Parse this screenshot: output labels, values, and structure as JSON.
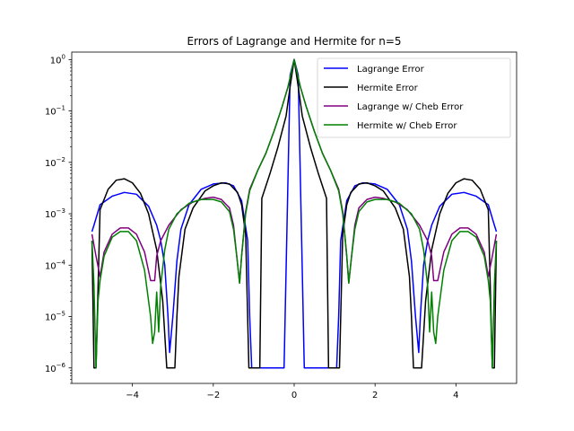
{
  "chart_data": {
    "type": "line",
    "title": "Errors of Lagrange and Hermite for n=5",
    "xlabel": "",
    "ylabel": "",
    "xlim": [
      -5.5,
      5.5
    ],
    "ylim": [
      5e-07,
      1.4
    ],
    "yscale": "log",
    "xticks": [
      -4,
      -2,
      0,
      2,
      4
    ],
    "xtick_labels": [
      "−4",
      "−2",
      "0",
      "2",
      "4"
    ],
    "yticks": [
      1e-06,
      1e-05,
      0.0001,
      0.001,
      0.01,
      0.1,
      1
    ],
    "ytick_labels": [
      {
        "base": "10",
        "exp": "−6"
      },
      {
        "base": "10",
        "exp": "−5"
      },
      {
        "base": "10",
        "exp": "−4"
      },
      {
        "base": "10",
        "exp": "−3"
      },
      {
        "base": "10",
        "exp": "−2"
      },
      {
        "base": "10",
        "exp": "−1"
      },
      {
        "base": "10",
        "exp": "0"
      }
    ],
    "grid": false,
    "legend_position": "top-right",
    "series": [
      {
        "name": "Lagrange Error",
        "color": "#0000ff",
        "x": [
          -5,
          -4.95,
          -4.8,
          -4.5,
          -4.2,
          -3.9,
          -3.6,
          -3.4,
          -3.3,
          -3.2,
          -3.12,
          -3.08,
          -3.0,
          -2.9,
          -2.8,
          -2.6,
          -2.3,
          -2.0,
          -1.7,
          -1.5,
          -1.3,
          -1.15,
          -1.1,
          -1.05,
          -1.0,
          -0.9,
          -0.8,
          -0.6,
          -0.4,
          -0.25,
          -0.1,
          0,
          0.1,
          0.25,
          0.4,
          0.6,
          0.8,
          0.9,
          1.0,
          1.05,
          1.1,
          1.15,
          1.3,
          1.5,
          1.7,
          2.0,
          2.3,
          2.6,
          2.8,
          2.9,
          3.0,
          3.08,
          3.12,
          3.2,
          3.3,
          3.4,
          3.6,
          3.9,
          4.2,
          4.5,
          4.8,
          4.95,
          5
        ],
        "y": [
          0.00045,
          0.0006,
          0.0015,
          0.0022,
          0.0026,
          0.0024,
          0.0014,
          0.0006,
          0.0003,
          0.0001,
          1e-05,
          2e-06,
          1e-05,
          0.00012,
          0.0005,
          0.0015,
          0.003,
          0.0038,
          0.004,
          0.0035,
          0.0018,
          0.0003,
          1e-05,
          1e-06,
          1e-06,
          1e-06,
          1e-06,
          1e-06,
          1e-06,
          1e-06,
          0.5,
          1.0,
          0.5,
          1e-06,
          1e-06,
          1e-06,
          1e-06,
          1e-06,
          1e-06,
          1e-06,
          1e-05,
          0.0003,
          0.0018,
          0.0035,
          0.004,
          0.0038,
          0.003,
          0.0015,
          0.0005,
          0.00012,
          1e-05,
          2e-06,
          1e-05,
          0.0001,
          0.0003,
          0.0006,
          0.0014,
          0.0024,
          0.0026,
          0.0022,
          0.0015,
          0.0006,
          0.00045
        ]
      },
      {
        "name": "Hermite Error",
        "color": "#000000",
        "x": [
          -5,
          -4.95,
          -4.9,
          -4.8,
          -4.6,
          -4.4,
          -4.2,
          -4.0,
          -3.8,
          -3.6,
          -3.4,
          -3.25,
          -3.15,
          -3.1,
          -3.05,
          -3.0,
          -2.95,
          -2.9,
          -2.85,
          -2.7,
          -2.5,
          -2.2,
          -2.0,
          -1.8,
          -1.6,
          -1.4,
          -1.3,
          -1.2,
          -1.12,
          -1.1,
          -1.05,
          -1.0,
          -0.95,
          -0.9,
          -0.85,
          -0.8,
          -0.6,
          -0.4,
          -0.2,
          -0.1,
          0,
          0.1,
          0.2,
          0.4,
          0.6,
          0.8,
          0.85,
          0.9,
          0.95,
          1.0,
          1.05,
          1.1,
          1.12,
          1.2,
          1.3,
          1.4,
          1.6,
          1.8,
          2.0,
          2.2,
          2.5,
          2.7,
          2.85,
          2.9,
          2.95,
          3.0,
          3.05,
          3.1,
          3.15,
          3.25,
          3.4,
          3.6,
          3.8,
          4.0,
          4.2,
          4.4,
          4.6,
          4.8,
          4.9,
          4.95,
          5
        ],
        "y": [
          0.0003,
          1e-06,
          1e-06,
          0.0012,
          0.003,
          0.0045,
          0.0048,
          0.004,
          0.0025,
          0.001,
          0.0002,
          2e-05,
          1e-06,
          1e-06,
          1e-06,
          1e-06,
          1e-06,
          1e-05,
          6e-05,
          0.0005,
          0.0013,
          0.0028,
          0.0035,
          0.004,
          0.0038,
          0.0026,
          0.0015,
          0.0004,
          1e-06,
          1e-06,
          1e-06,
          1e-06,
          1e-06,
          1e-06,
          1e-06,
          0.002,
          0.006,
          0.02,
          0.08,
          0.3,
          1.0,
          0.3,
          0.08,
          0.02,
          0.006,
          0.002,
          1e-06,
          1e-06,
          1e-06,
          1e-06,
          1e-06,
          1e-06,
          1e-06,
          0.0004,
          0.0015,
          0.0026,
          0.0038,
          0.004,
          0.0035,
          0.0028,
          0.0013,
          0.0005,
          6e-05,
          1e-05,
          1e-06,
          1e-06,
          1e-06,
          1e-06,
          1e-06,
          2e-05,
          0.0002,
          0.001,
          0.0025,
          0.004,
          0.0048,
          0.0045,
          0.003,
          0.0012,
          1e-06,
          1e-06,
          0.0003
        ]
      },
      {
        "name": "Lagrange w/ Cheb Error",
        "color": "#800080",
        "x": [
          -5,
          -4.9,
          -4.8,
          -4.7,
          -4.5,
          -4.3,
          -4.1,
          -3.9,
          -3.7,
          -3.55,
          -3.45,
          -3.4,
          -3.3,
          -3.1,
          -2.8,
          -2.5,
          -2.2,
          -2.0,
          -1.8,
          -1.6,
          -1.5,
          -1.42,
          -1.35,
          -1.3,
          -1.2,
          -1.1,
          -0.9,
          -0.7,
          -0.5,
          -0.3,
          -0.15,
          0,
          0.15,
          0.3,
          0.5,
          0.7,
          0.9,
          1.1,
          1.2,
          1.3,
          1.35,
          1.42,
          1.5,
          1.6,
          1.8,
          2.0,
          2.2,
          2.5,
          2.8,
          3.1,
          3.3,
          3.4,
          3.45,
          3.55,
          3.7,
          3.9,
          4.1,
          4.3,
          4.5,
          4.7,
          4.8,
          4.9,
          5
        ],
        "y": [
          0.0004,
          0.00015,
          6e-05,
          0.00018,
          0.0004,
          0.00053,
          0.00053,
          0.0004,
          0.00018,
          5e-05,
          5e-05,
          0.00015,
          0.0003,
          0.0006,
          0.0012,
          0.0017,
          0.002,
          0.0021,
          0.0019,
          0.0013,
          0.0006,
          0.00015,
          4.5e-05,
          0.00015,
          0.0011,
          0.003,
          0.007,
          0.015,
          0.04,
          0.12,
          0.3,
          1.0,
          0.3,
          0.12,
          0.04,
          0.015,
          0.007,
          0.003,
          0.0011,
          0.00015,
          4.5e-05,
          0.00015,
          0.0006,
          0.0013,
          0.0019,
          0.0021,
          0.002,
          0.0017,
          0.0012,
          0.0006,
          0.0003,
          0.00015,
          5e-05,
          5e-05,
          0.00018,
          0.0004,
          0.00053,
          0.00053,
          0.0004,
          0.00018,
          6e-05,
          0.00015,
          0.0004
        ]
      },
      {
        "name": "Hermite w/ Cheb Error",
        "color": "#008000",
        "x": [
          -5,
          -4.95,
          -4.9,
          -4.85,
          -4.8,
          -4.7,
          -4.5,
          -4.3,
          -4.1,
          -3.9,
          -3.7,
          -3.55,
          -3.5,
          -3.45,
          -3.4,
          -3.35,
          -3.3,
          -3.2,
          -3.1,
          -2.9,
          -2.6,
          -2.3,
          -2.0,
          -1.8,
          -1.6,
          -1.5,
          -1.42,
          -1.35,
          -1.3,
          -1.2,
          -1.1,
          -0.9,
          -0.7,
          -0.5,
          -0.3,
          -0.15,
          0,
          0.15,
          0.3,
          0.5,
          0.7,
          0.9,
          1.1,
          1.2,
          1.3,
          1.35,
          1.42,
          1.5,
          1.6,
          1.8,
          2.0,
          2.3,
          2.6,
          2.9,
          3.1,
          3.2,
          3.3,
          3.35,
          3.4,
          3.45,
          3.5,
          3.55,
          3.7,
          3.9,
          4.1,
          4.3,
          4.5,
          4.7,
          4.8,
          4.85,
          4.9,
          4.95,
          5
        ],
        "y": [
          0.0003,
          4e-05,
          1e-06,
          2e-05,
          5e-05,
          0.00015,
          0.00035,
          0.00045,
          0.00045,
          0.0003,
          8e-05,
          1e-05,
          3e-06,
          5e-06,
          3e-05,
          5e-06,
          4e-05,
          0.0002,
          0.0005,
          0.001,
          0.0016,
          0.0019,
          0.0019,
          0.0017,
          0.0011,
          0.0005,
          0.00015,
          4.5e-05,
          0.00015,
          0.001,
          0.0028,
          0.007,
          0.015,
          0.04,
          0.12,
          0.3,
          1.0,
          0.3,
          0.12,
          0.04,
          0.015,
          0.007,
          0.0028,
          0.001,
          0.00015,
          4.5e-05,
          0.00015,
          0.0005,
          0.0011,
          0.0017,
          0.0019,
          0.0019,
          0.0016,
          0.001,
          0.0005,
          0.0002,
          4e-05,
          5e-06,
          3e-05,
          5e-06,
          3e-06,
          1e-05,
          8e-05,
          0.0003,
          0.00045,
          0.00045,
          0.00035,
          0.00015,
          5e-05,
          2e-05,
          1e-06,
          4e-05,
          0.0003
        ]
      }
    ]
  }
}
